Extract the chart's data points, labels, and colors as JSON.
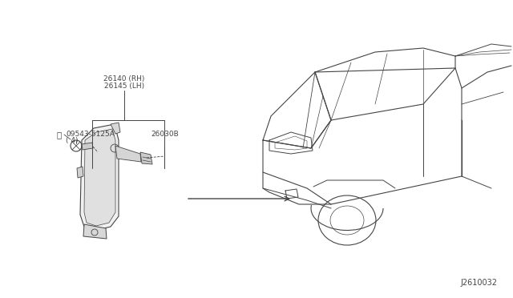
{
  "bg_color": "#ffffff",
  "line_color": "#444444",
  "diagram_number": "J2610032",
  "label_26140": "26140 (RH)",
  "label_26145": "26145 (LH)",
  "label_26030": "26030B",
  "label_bolt": "09543-5125A",
  "label_bolt_qty": "( 4)"
}
